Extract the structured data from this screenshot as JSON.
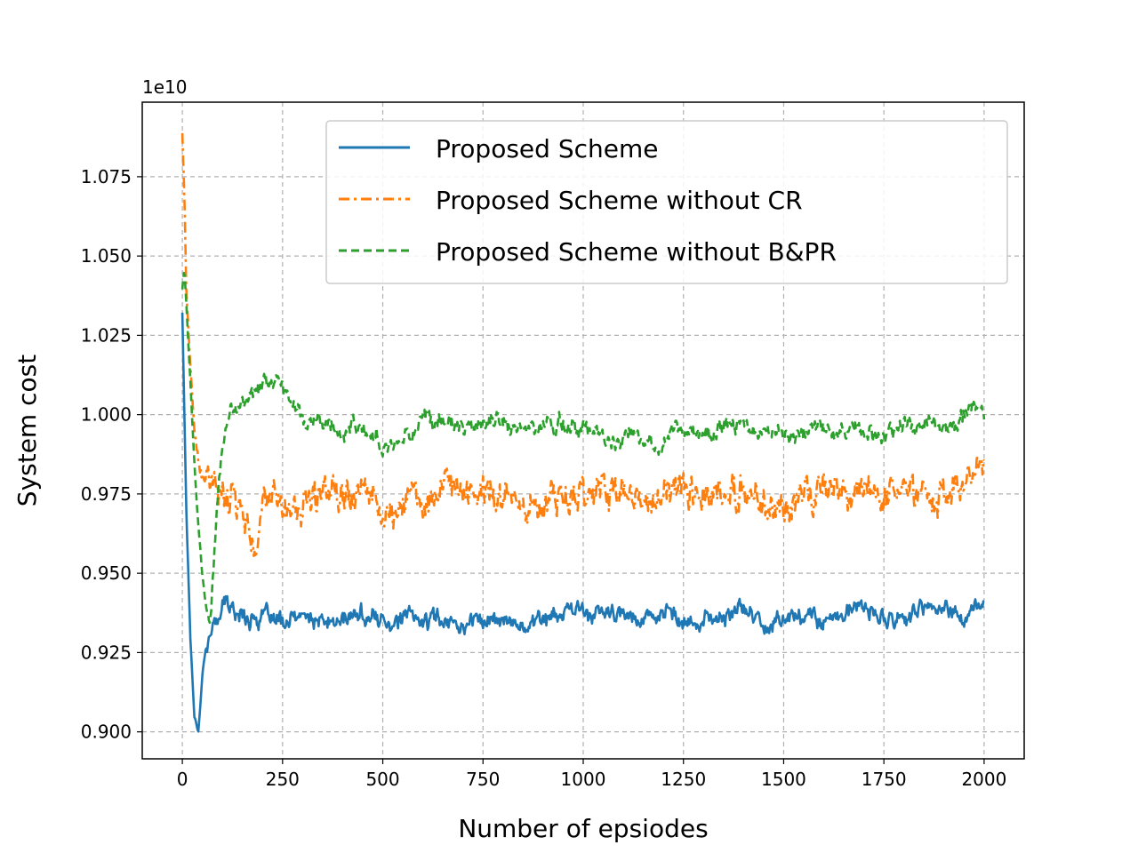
{
  "chart_data": {
    "type": "line",
    "title": "",
    "xlabel": "Number of epsiodes",
    "ylabel": "System cost",
    "y_offset_label": "1e10",
    "xlim": [
      -100,
      2100
    ],
    "ylim": [
      0.8915,
      1.0985
    ],
    "xticks": [
      0,
      250,
      500,
      750,
      1000,
      1250,
      1500,
      1750,
      2000
    ],
    "xtick_labels": [
      "0",
      "250",
      "500",
      "750",
      "1000",
      "1250",
      "1500",
      "1750",
      "2000"
    ],
    "yticks": [
      0.9,
      0.925,
      0.95,
      0.975,
      1.0,
      1.025,
      1.05,
      1.075
    ],
    "ytick_labels": [
      "0.900",
      "0.925",
      "0.950",
      "0.975",
      "1.000",
      "1.025",
      "1.050",
      "1.075"
    ],
    "grid": true,
    "legend_position": "top-right",
    "series": [
      {
        "name": "Proposed Scheme",
        "color": "#1f77b4",
        "style": "solid",
        "noise": 0.004,
        "x": [
          0,
          10,
          20,
          30,
          40,
          50,
          60,
          80,
          100,
          120,
          150,
          200,
          250,
          300,
          350,
          400,
          450,
          500,
          550,
          600,
          650,
          700,
          750,
          800,
          850,
          900,
          950,
          1000,
          1050,
          1100,
          1150,
          1200,
          1250,
          1300,
          1350,
          1400,
          1450,
          1500,
          1550,
          1600,
          1650,
          1700,
          1750,
          1800,
          1850,
          1900,
          1950,
          2000
        ],
        "y": [
          1.032,
          0.97,
          0.93,
          0.905,
          0.901,
          0.918,
          0.928,
          0.933,
          0.941,
          0.939,
          0.937,
          0.936,
          0.934,
          0.936,
          0.934,
          0.935,
          0.937,
          0.935,
          0.936,
          0.935,
          0.936,
          0.934,
          0.936,
          0.935,
          0.934,
          0.936,
          0.937,
          0.938,
          0.937,
          0.936,
          0.937,
          0.938,
          0.933,
          0.935,
          0.936,
          0.939,
          0.934,
          0.936,
          0.937,
          0.936,
          0.937,
          0.939,
          0.935,
          0.936,
          0.938,
          0.939,
          0.936,
          0.94
        ]
      },
      {
        "name": "Proposed Scheme without CR",
        "color": "#ff7f0e",
        "style": "dashdot",
        "noise": 0.008,
        "x": [
          0,
          5,
          10,
          20,
          30,
          40,
          50,
          60,
          80,
          100,
          120,
          150,
          180,
          200,
          250,
          300,
          350,
          400,
          450,
          500,
          550,
          600,
          650,
          700,
          750,
          800,
          850,
          900,
          950,
          1000,
          1050,
          1100,
          1150,
          1200,
          1250,
          1300,
          1350,
          1400,
          1450,
          1500,
          1550,
          1600,
          1650,
          1700,
          1750,
          1800,
          1850,
          1900,
          1950,
          2000
        ],
        "y": [
          1.088,
          1.07,
          1.04,
          1.015,
          0.995,
          0.985,
          0.978,
          0.98,
          0.975,
          0.974,
          0.976,
          0.975,
          0.955,
          0.973,
          0.972,
          0.97,
          0.975,
          0.978,
          0.98,
          0.969,
          0.972,
          0.974,
          0.976,
          0.975,
          0.977,
          0.975,
          0.973,
          0.972,
          0.974,
          0.978,
          0.977,
          0.974,
          0.971,
          0.973,
          0.98,
          0.976,
          0.974,
          0.975,
          0.972,
          0.97,
          0.973,
          0.976,
          0.974,
          0.978,
          0.974,
          0.977,
          0.976,
          0.974,
          0.976,
          0.985
        ]
      },
      {
        "name": "Proposed Scheme without B&PR",
        "color": "#2ca02c",
        "style": "dashed",
        "noise": 0.004,
        "x": [
          0,
          5,
          10,
          20,
          30,
          40,
          50,
          60,
          70,
          80,
          90,
          100,
          120,
          150,
          200,
          250,
          280,
          300,
          350,
          400,
          450,
          500,
          550,
          600,
          650,
          700,
          750,
          800,
          850,
          900,
          950,
          1000,
          1050,
          1100,
          1150,
          1200,
          1250,
          1300,
          1350,
          1400,
          1450,
          1500,
          1550,
          1600,
          1650,
          1700,
          1750,
          1800,
          1850,
          1900,
          1950,
          2000
        ],
        "y": [
          1.04,
          1.046,
          1.035,
          1.01,
          0.985,
          0.965,
          0.95,
          0.938,
          0.936,
          0.955,
          0.975,
          0.99,
          1.0,
          1.005,
          1.008,
          1.009,
          1.006,
          0.998,
          0.997,
          0.995,
          0.998,
          0.99,
          0.993,
          0.999,
          0.997,
          0.995,
          0.997,
          0.998,
          0.995,
          0.996,
          0.998,
          0.995,
          0.994,
          0.992,
          0.994,
          0.993,
          0.996,
          0.995,
          0.997,
          0.996,
          0.994,
          0.993,
          0.995,
          0.996,
          0.994,
          0.995,
          0.993,
          0.995,
          0.998,
          0.997,
          1.0,
          1.0
        ]
      }
    ]
  }
}
